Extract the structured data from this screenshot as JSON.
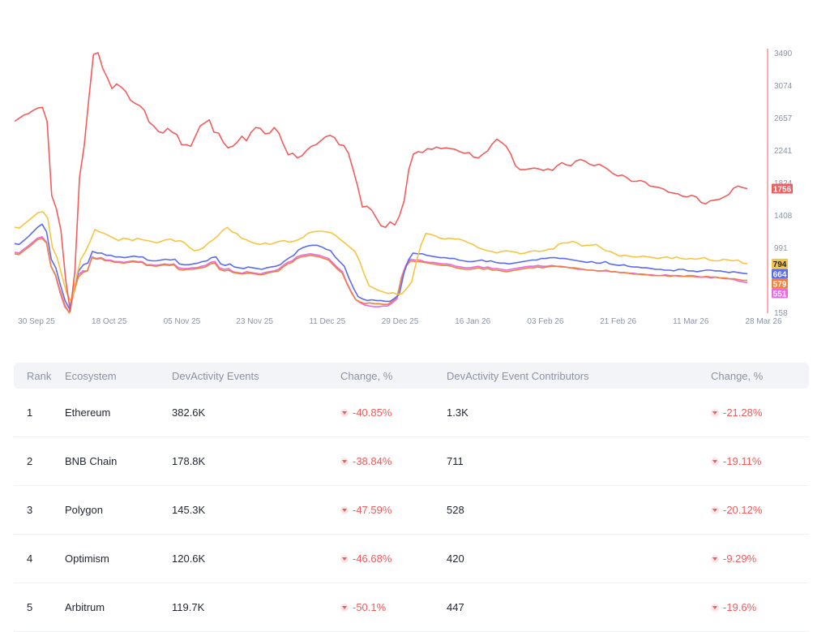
{
  "chart_data": {
    "type": "line",
    "x_ticks": [
      "30 Sep 25",
      "18 Oct 25",
      "05 Nov 25",
      "23 Nov 25",
      "11 Dec 25",
      "29 Dec 25",
      "16 Jan 26",
      "03 Feb 26",
      "21 Feb 26",
      "11 Mar 26",
      "28 Mar 26"
    ],
    "y_ticks": [
      158,
      575,
      991,
      1408,
      1824,
      2241,
      2657,
      3074,
      3490
    ],
    "ylim": [
      158,
      3490
    ],
    "y_axis_side": "right",
    "grid": false,
    "series": [
      {
        "color": "#f25c5c",
        "last_value": "1756",
        "values": [
          2620,
          2660,
          2700,
          2720,
          2760,
          2790,
          2800,
          2620,
          1670,
          1500,
          1220,
          600,
          180,
          700,
          1900,
          2300,
          2900,
          3480,
          3500,
          3300,
          3180,
          3040,
          3100,
          3060,
          3000,
          2890,
          2850,
          2820,
          2760,
          2610,
          2560,
          2490,
          2470,
          2530,
          2480,
          2450,
          2320,
          2320,
          2300,
          2430,
          2560,
          2600,
          2640,
          2480,
          2470,
          2350,
          2280,
          2300,
          2350,
          2430,
          2370,
          2480,
          2540,
          2530,
          2460,
          2470,
          2540,
          2470,
          2320,
          2190,
          2210,
          2150,
          2180,
          2250,
          2300,
          2320,
          2370,
          2420,
          2440,
          2410,
          2320,
          2310,
          2210,
          2000,
          1780,
          1520,
          1530,
          1480,
          1380,
          1280,
          1260,
          1330,
          1290,
          1410,
          1600,
          2000,
          2200,
          2230,
          2220,
          2270,
          2260,
          2290,
          2270,
          2280,
          2270,
          2260,
          2230,
          2210,
          2220,
          2160,
          2150,
          2200,
          2240,
          2330,
          2390,
          2350,
          2300,
          2200,
          2050,
          2000,
          2000,
          2010,
          2020,
          2010,
          1990,
          2010,
          1990,
          2050,
          2090,
          2060,
          2050,
          2110,
          2130,
          2110,
          2070,
          2050,
          2070,
          2040,
          2000,
          1950,
          1920,
          1930,
          1900,
          1850,
          1850,
          1860,
          1840,
          1790,
          1780,
          1770,
          1750,
          1710,
          1700,
          1690,
          1660,
          1650,
          1670,
          1650,
          1580,
          1560,
          1600,
          1610,
          1620,
          1650,
          1680,
          1760,
          1790,
          1770,
          1756
        ]
      },
      {
        "color": "#f5c542",
        "last_value": "794",
        "values": [
          1260,
          1250,
          1300,
          1350,
          1400,
          1450,
          1460,
          1380,
          1000,
          870,
          640,
          420,
          300,
          600,
          850,
          950,
          1080,
          1230,
          1200,
          1180,
          1150,
          1120,
          1090,
          1120,
          1110,
          1090,
          1120,
          1100,
          1090,
          1080,
          1060,
          1080,
          1100,
          1110,
          1080,
          1090,
          1060,
          1000,
          960,
          970,
          1000,
          1060,
          1100,
          1150,
          1220,
          1260,
          1200,
          1180,
          1120,
          1100,
          1070,
          1050,
          1040,
          1060,
          1040,
          1060,
          1080,
          1090,
          1070,
          1080,
          1100,
          1130,
          1180,
          1200,
          1210,
          1210,
          1200,
          1190,
          1150,
          1100,
          1050,
          1000,
          950,
          820,
          650,
          510,
          480,
          450,
          430,
          410,
          420,
          400,
          410,
          480,
          560,
          820,
          1040,
          1180,
          1170,
          1150,
          1120,
          1110,
          1120,
          1110,
          1110,
          1090,
          1060,
          1040,
          1000,
          980,
          960,
          950,
          930,
          950,
          960,
          950,
          940,
          920,
          930,
          950,
          960,
          950,
          960,
          980,
          980,
          1040,
          1060,
          1060,
          1080,
          1060,
          1020,
          1030,
          1030,
          1040,
          1000,
          960,
          950,
          920,
          890,
          900,
          890,
          880,
          880,
          890,
          880,
          870,
          860,
          870,
          880,
          860,
          880,
          860,
          850,
          860,
          850,
          860,
          870,
          840,
          830,
          830,
          850,
          840,
          830,
          840,
          800,
          794
        ]
      },
      {
        "color": "#5a6cf0",
        "last_value": "664",
        "values": [
          1050,
          1040,
          1090,
          1140,
          1200,
          1260,
          1300,
          1200,
          850,
          740,
          520,
          320,
          210,
          500,
          700,
          780,
          800,
          950,
          930,
          930,
          900,
          900,
          880,
          880,
          870,
          880,
          890,
          880,
          880,
          840,
          830,
          830,
          840,
          850,
          840,
          850,
          790,
          780,
          780,
          790,
          800,
          820,
          830,
          870,
          880,
          790,
          770,
          790,
          750,
          740,
          730,
          750,
          740,
          730,
          720,
          740,
          750,
          760,
          780,
          830,
          870,
          900,
          970,
          1000,
          1020,
          1030,
          1030,
          1010,
          980,
          960,
          880,
          820,
          760,
          610,
          480,
          370,
          340,
          320,
          330,
          320,
          320,
          310,
          310,
          350,
          400,
          670,
          840,
          930,
          920,
          920,
          900,
          890,
          880,
          870,
          870,
          860,
          860,
          840,
          830,
          820,
          820,
          830,
          840,
          820,
          830,
          810,
          800,
          800,
          790,
          800,
          810,
          820,
          830,
          840,
          840,
          860,
          860,
          870,
          870,
          860,
          860,
          850,
          840,
          830,
          820,
          810,
          820,
          800,
          800,
          820,
          790,
          780,
          770,
          780,
          760,
          750,
          750,
          740,
          740,
          730,
          720,
          720,
          710,
          710,
          700,
          720,
          720,
          700,
          700,
          690,
          700,
          710,
          710,
          700,
          700,
          690,
          680,
          690,
          680,
          670,
          664
        ]
      },
      {
        "color": "#f0803c",
        "last_value": "579",
        "values": [
          920,
          910,
          960,
          1000,
          1050,
          1100,
          1120,
          1060,
          760,
          650,
          450,
          270,
          160,
          420,
          620,
          680,
          700,
          870,
          850,
          860,
          830,
          830,
          810,
          810,
          800,
          810,
          820,
          810,
          810,
          770,
          770,
          760,
          770,
          780,
          770,
          780,
          720,
          710,
          720,
          720,
          730,
          740,
          750,
          790,
          800,
          720,
          700,
          710,
          680,
          670,
          660,
          670,
          670,
          660,
          650,
          660,
          680,
          690,
          700,
          750,
          790,
          810,
          860,
          880,
          890,
          900,
          890,
          880,
          860,
          840,
          780,
          720,
          670,
          540,
          420,
          330,
          300,
          280,
          290,
          280,
          280,
          270,
          270,
          310,
          360,
          600,
          760,
          830,
          820,
          820,
          810,
          800,
          790,
          780,
          770,
          770,
          760,
          740,
          730,
          720,
          720,
          730,
          740,
          720,
          730,
          710,
          710,
          700,
          690,
          700,
          710,
          720,
          730,
          740,
          740,
          750,
          740,
          750,
          760,
          760,
          750,
          750,
          740,
          740,
          730,
          720,
          710,
          710,
          700,
          700,
          710,
          690,
          690,
          680,
          680,
          670,
          660,
          660,
          650,
          650,
          640,
          640,
          640,
          640,
          630,
          640,
          640,
          630,
          630,
          630,
          620,
          620,
          630,
          620,
          620,
          610,
          610,
          600,
          600,
          590,
          580,
          579
        ]
      },
      {
        "color": "#e66be6",
        "last_value": "551",
        "values": [
          940,
          930,
          980,
          1020,
          1070,
          1120,
          1140,
          1070,
          760,
          640,
          420,
          240,
          170,
          440,
          650,
          700,
          700,
          880,
          860,
          870,
          840,
          840,
          820,
          820,
          810,
          820,
          830,
          820,
          820,
          780,
          780,
          770,
          780,
          790,
          780,
          790,
          740,
          730,
          730,
          740,
          740,
          760,
          770,
          810,
          820,
          740,
          720,
          730,
          690,
          680,
          670,
          690,
          680,
          670,
          660,
          680,
          690,
          700,
          720,
          770,
          810,
          830,
          880,
          900,
          910,
          920,
          910,
          900,
          880,
          860,
          800,
          740,
          690,
          550,
          430,
          330,
          290,
          260,
          250,
          240,
          240,
          250,
          250,
          290,
          340,
          620,
          780,
          850,
          840,
          840,
          820,
          810,
          810,
          800,
          790,
          790,
          780,
          760,
          750,
          740,
          740,
          750,
          760,
          740,
          750,
          730,
          730,
          720,
          710,
          720,
          730,
          740,
          750,
          760,
          760,
          770,
          760,
          760,
          770,
          760,
          760,
          750,
          740,
          730,
          720,
          720,
          710,
          710,
          700,
          700,
          700,
          690,
          690,
          680,
          680,
          670,
          670,
          660,
          660,
          650,
          650,
          640,
          640,
          650,
          640,
          640,
          630,
          630,
          640,
          640,
          630,
          620,
          620,
          610,
          620,
          610,
          600,
          600,
          590,
          570,
          560,
          551
        ]
      }
    ]
  },
  "table": {
    "headers": {
      "rank": "Rank",
      "ecosystem": "Ecosystem",
      "events": "DevActivity Events",
      "change1": "Change, %",
      "contributors": "DevActivity Event Contributors",
      "change2": "Change, %"
    },
    "rows": [
      {
        "rank": "1",
        "ecosystem": "Ethereum",
        "events": "382.6K",
        "change1": "-40.85%",
        "contributors": "1.3K",
        "change2": "-21.28%"
      },
      {
        "rank": "2",
        "ecosystem": "BNB Chain",
        "events": "178.8K",
        "change1": "-38.84%",
        "contributors": "711",
        "change2": "-19.11%"
      },
      {
        "rank": "3",
        "ecosystem": "Polygon",
        "events": "145.3K",
        "change1": "-47.59%",
        "contributors": "528",
        "change2": "-20.12%"
      },
      {
        "rank": "4",
        "ecosystem": "Optimism",
        "events": "120.6K",
        "change1": "-46.68%",
        "contributors": "420",
        "change2": "-9.29%"
      },
      {
        "rank": "5",
        "ecosystem": "Arbitrum",
        "events": "119.7K",
        "change1": "-50.1%",
        "contributors": "447",
        "change2": "-19.6%"
      }
    ]
  }
}
